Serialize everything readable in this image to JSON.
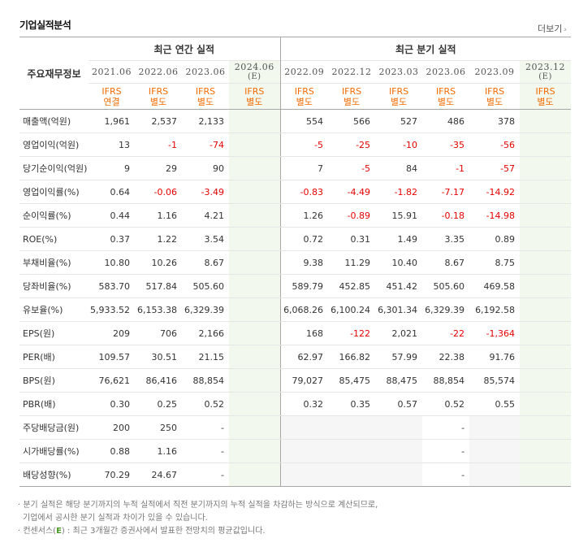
{
  "section_title": "기업실적분석",
  "more_label": "더보기",
  "header": {
    "corner": "주요재무정보",
    "annual_group": "최근 연간 실적",
    "quarter_group": "최근 분기 실적",
    "annual_periods": [
      {
        "label": "2021.06",
        "estimate": ""
      },
      {
        "label": "2022.06",
        "estimate": ""
      },
      {
        "label": "2023.06",
        "estimate": ""
      },
      {
        "label": "2024.06",
        "estimate": "(E)"
      }
    ],
    "quarter_periods": [
      {
        "label": "2022.09",
        "estimate": ""
      },
      {
        "label": "2022.12",
        "estimate": ""
      },
      {
        "label": "2023.03",
        "estimate": ""
      },
      {
        "label": "2023.06",
        "estimate": ""
      },
      {
        "label": "2023.09",
        "estimate": ""
      },
      {
        "label": "2023.12",
        "estimate": "(E)"
      }
    ],
    "annual_report_types": [
      {
        "std": "IFRS",
        "kind": "연결"
      },
      {
        "std": "IFRS",
        "kind": "별도"
      },
      {
        "std": "IFRS",
        "kind": "별도"
      },
      {
        "std": "IFRS",
        "kind": "별도"
      }
    ],
    "quarter_report_types": [
      {
        "std": "IFRS",
        "kind": "별도"
      },
      {
        "std": "IFRS",
        "kind": "별도"
      },
      {
        "std": "IFRS",
        "kind": "별도"
      },
      {
        "std": "IFRS",
        "kind": "별도"
      },
      {
        "std": "IFRS",
        "kind": "별도"
      },
      {
        "std": "IFRS",
        "kind": "별도"
      }
    ]
  },
  "rows": [
    {
      "label": "매출액(억원)",
      "annual": [
        "1,961",
        "2,537",
        "2,133",
        ""
      ],
      "quarter": [
        "554",
        "566",
        "527",
        "486",
        "378",
        ""
      ]
    },
    {
      "label": "영업이익(억원)",
      "annual": [
        "13",
        "-1",
        "-74",
        ""
      ],
      "quarter": [
        "-5",
        "-25",
        "-10",
        "-35",
        "-56",
        ""
      ]
    },
    {
      "label": "당기순이익(억원)",
      "annual": [
        "9",
        "29",
        "90",
        ""
      ],
      "quarter": [
        "7",
        "-5",
        "84",
        "-1",
        "-57",
        ""
      ]
    },
    {
      "label": "영업이익률(%)",
      "annual": [
        "0.64",
        "-0.06",
        "-3.49",
        ""
      ],
      "quarter": [
        "-0.83",
        "-4.49",
        "-1.82",
        "-7.17",
        "-14.92",
        ""
      ]
    },
    {
      "label": "순이익률(%)",
      "annual": [
        "0.44",
        "1.16",
        "4.21",
        ""
      ],
      "quarter": [
        "1.26",
        "-0.89",
        "15.91",
        "-0.18",
        "-14.98",
        ""
      ]
    },
    {
      "label": "ROE(%)",
      "annual": [
        "0.37",
        "1.22",
        "3.54",
        ""
      ],
      "quarter": [
        "0.72",
        "0.31",
        "1.49",
        "3.35",
        "0.89",
        ""
      ]
    },
    {
      "label": "부채비율(%)",
      "annual": [
        "10.80",
        "10.26",
        "8.67",
        ""
      ],
      "quarter": [
        "9.38",
        "11.29",
        "10.40",
        "8.67",
        "8.75",
        ""
      ]
    },
    {
      "label": "당좌비율(%)",
      "annual": [
        "583.70",
        "517.84",
        "505.60",
        ""
      ],
      "quarter": [
        "589.79",
        "452.85",
        "451.42",
        "505.60",
        "469.58",
        ""
      ]
    },
    {
      "label": "유보율(%)",
      "annual": [
        "5,933.52",
        "6,153.38",
        "6,329.39",
        ""
      ],
      "quarter": [
        "6,068.26",
        "6,100.24",
        "6,301.34",
        "6,329.39",
        "6,192.58",
        ""
      ]
    },
    {
      "label": "EPS(원)",
      "annual": [
        "209",
        "706",
        "2,166",
        ""
      ],
      "quarter": [
        "168",
        "-122",
        "2,021",
        "-22",
        "-1,364",
        ""
      ]
    },
    {
      "label": "PER(배)",
      "annual": [
        "109.57",
        "30.51",
        "21.15",
        ""
      ],
      "quarter": [
        "62.97",
        "166.82",
        "57.99",
        "22.38",
        "91.76",
        ""
      ]
    },
    {
      "label": "BPS(원)",
      "annual": [
        "76,621",
        "86,416",
        "88,854",
        ""
      ],
      "quarter": [
        "79,027",
        "85,475",
        "88,475",
        "88,854",
        "85,574",
        ""
      ]
    },
    {
      "label": "PBR(배)",
      "annual": [
        "0.30",
        "0.25",
        "0.52",
        ""
      ],
      "quarter": [
        "0.32",
        "0.35",
        "0.57",
        "0.52",
        "0.55",
        ""
      ]
    },
    {
      "label": "주당배당금(원)",
      "annual": [
        "200",
        "250",
        "-",
        ""
      ],
      "quarter": [
        "",
        "",
        "",
        "-",
        "",
        ""
      ]
    },
    {
      "label": "시가배당률(%)",
      "annual": [
        "0.88",
        "1.16",
        "-",
        ""
      ],
      "quarter": [
        "",
        "",
        "",
        "-",
        "",
        ""
      ]
    },
    {
      "label": "배당성향(%)",
      "annual": [
        "70.29",
        "24.67",
        "-",
        ""
      ],
      "quarter": [
        "",
        "",
        "",
        "-",
        "",
        ""
      ]
    }
  ],
  "notes": {
    "line1": "분기 실적은 해당 분기까지의 누적 실적에서 직전 분기까지의 누적 실적을 차감하는 방식으로 계산되므로,",
    "line2": "기업에서 공시한 분기 실적과 차이가 있을 수 있습니다.",
    "line3_prefix": "컨센서스(",
    "line3_mark": "E",
    "line3_suffix": ") : 최근 3개월간 증권사에서 발표한 전망치의 평균값입니다."
  }
}
